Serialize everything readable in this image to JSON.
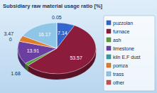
{
  "chart_data": {
    "type": "pie",
    "title": "Subsidiary raw material usage ratio [%]",
    "categories": [
      "puzzolan",
      "furnace",
      "ash",
      "limestone",
      "kiln E.F dust",
      "pomza",
      "trass",
      "other"
    ],
    "values": [
      7.14,
      53.57,
      1.68,
      13.91,
      0,
      3.47,
      16.17,
      0.05
    ],
    "colors": [
      "#3366cc",
      "#8b1c3c",
      "#5a9e3a",
      "#6b3fa0",
      "#33a0a0",
      "#e07b28",
      "#8ec6e8",
      "#c8504a"
    ],
    "data_labels": true,
    "legend": "right"
  }
}
